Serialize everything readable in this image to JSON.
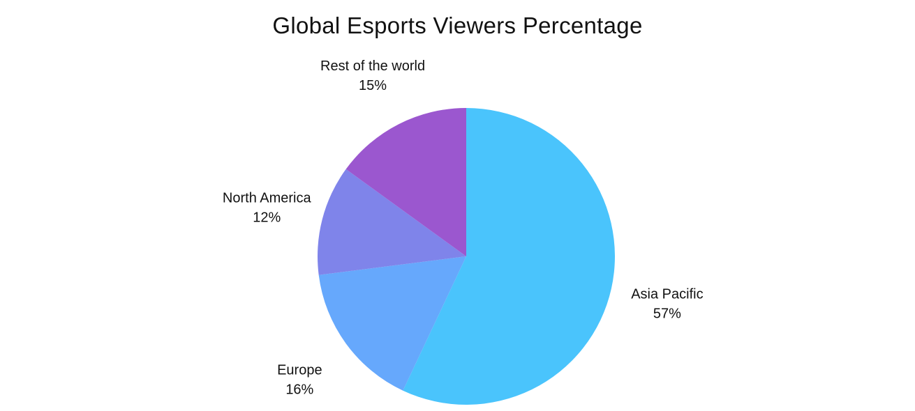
{
  "chart_data": {
    "type": "pie",
    "title": "Global Esports Viewers Percentage",
    "slices": [
      {
        "label": "Asia Pacific",
        "value": 57,
        "display": "57%",
        "color": "#4ac4fc"
      },
      {
        "label": "Europe",
        "value": 16,
        "display": "16%",
        "color": "#66a8fc"
      },
      {
        "label": "North America",
        "value": 12,
        "display": "12%",
        "color": "#7f84ea"
      },
      {
        "label": "Rest of the world",
        "value": 15,
        "display": "15%",
        "color": "#9b57cf"
      }
    ],
    "start": "top",
    "direction": "clockwise",
    "legend": "none"
  }
}
